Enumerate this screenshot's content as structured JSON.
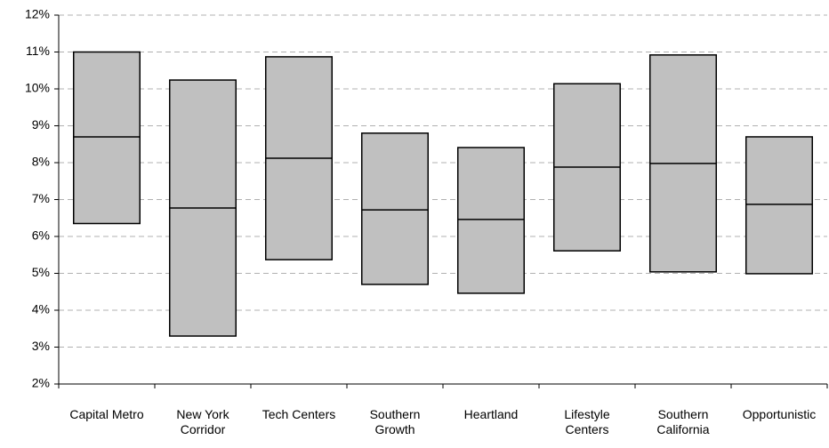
{
  "chart_data": {
    "type": "range",
    "categories": [
      "Capital Metro",
      "New York Corridor",
      "Tech Centers",
      "Southern Growth",
      "Heartland",
      "Lifestyle Centers",
      "Southern California",
      "Opportunistic"
    ],
    "low": [
      6.35,
      3.3,
      5.37,
      4.7,
      4.46,
      5.61,
      5.04,
      4.99
    ],
    "median": [
      8.7,
      6.77,
      8.12,
      6.72,
      6.46,
      7.88,
      7.98,
      6.87
    ],
    "high": [
      11.0,
      10.24,
      10.87,
      8.8,
      8.41,
      10.14,
      10.92,
      8.7
    ],
    "color": "#c0c0c0",
    "ylim": [
      2,
      12
    ],
    "yticks": [
      {
        "value": 2,
        "label": "2%"
      },
      {
        "value": 3,
        "label": "3%"
      },
      {
        "value": 4,
        "label": "4%"
      },
      {
        "value": 5,
        "label": "5%"
      },
      {
        "value": 6,
        "label": "6%"
      },
      {
        "value": 7,
        "label": "7%"
      },
      {
        "value": 8,
        "label": "8%"
      },
      {
        "value": 9,
        "label": "9%"
      },
      {
        "value": 10,
        "label": "10%"
      },
      {
        "value": 11,
        "label": "11%"
      },
      {
        "value": 12,
        "label": "12%"
      }
    ],
    "grid": true
  }
}
